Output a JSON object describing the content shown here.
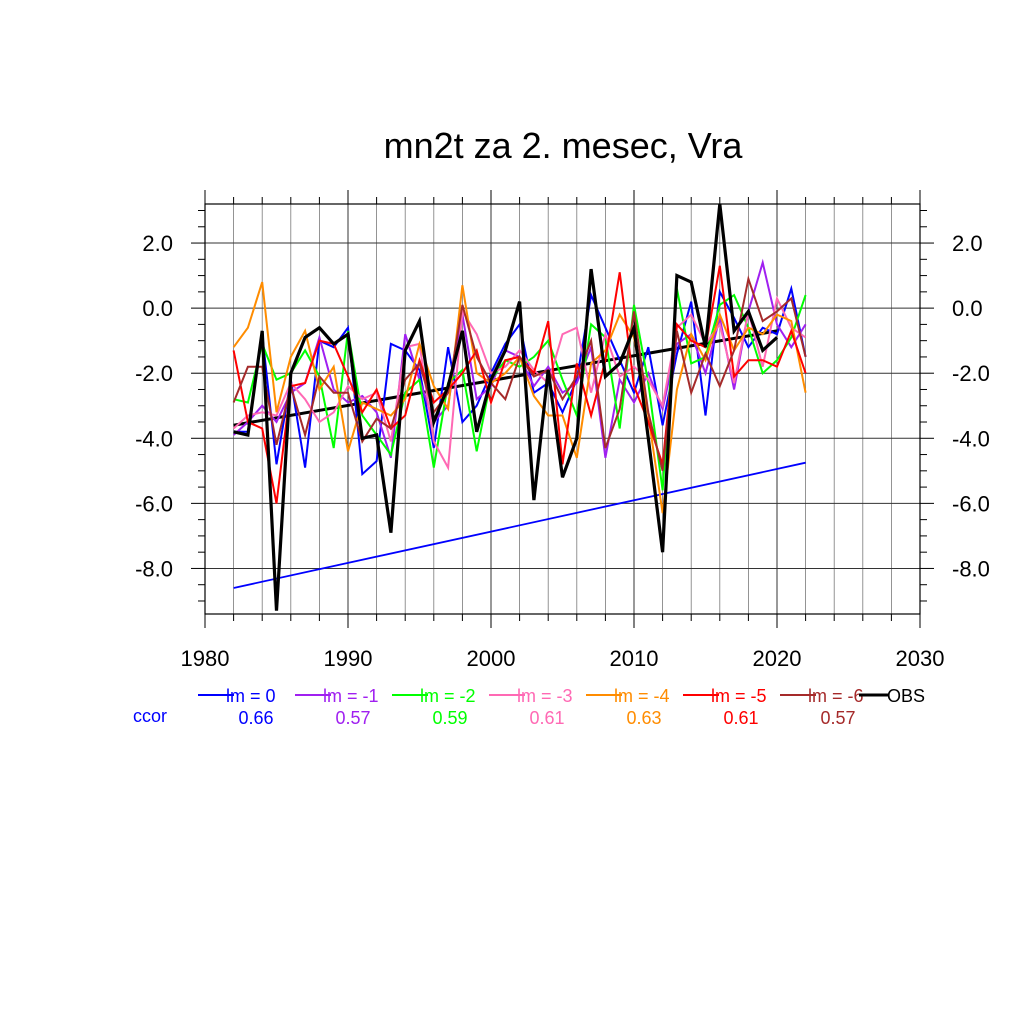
{
  "chart_data": {
    "type": "line",
    "title": "mn2t za 2. mesec, Vra",
    "xlabel": "",
    "ylabel": "",
    "xlim": [
      1980,
      2030
    ],
    "ylim": [
      -9.4,
      3.2
    ],
    "x_major_ticks": [
      1980,
      1990,
      2000,
      2010,
      2020,
      2030
    ],
    "y_major_ticks": [
      2,
      0,
      -2,
      -4,
      -6,
      -8
    ],
    "y_tick_labels": [
      "2.0",
      "0.0",
      "-2.0",
      "-4.0",
      "-6.0",
      "-8.0"
    ],
    "grid": true,
    "legend_position": "bottom",
    "ccor_label": "ccor",
    "x": [
      1982,
      1983,
      1984,
      1985,
      1986,
      1987,
      1988,
      1989,
      1990,
      1991,
      1992,
      1993,
      1994,
      1995,
      1996,
      1997,
      1998,
      1999,
      2000,
      2001,
      2002,
      2003,
      2004,
      2005,
      2006,
      2007,
      2008,
      2009,
      2010,
      2011,
      2012,
      2013,
      2014,
      2015,
      2016,
      2017,
      2018,
      2019,
      2020,
      2021,
      2022
    ],
    "series": [
      {
        "name": "lm = 0",
        "color": "#0000ff",
        "ccor": "0.66",
        "values": [
          -3.8,
          -3.8,
          -0.8,
          -4.8,
          -2.2,
          -4.9,
          -1.0,
          -1.2,
          -0.6,
          -5.1,
          -4.7,
          -1.1,
          -1.3,
          -1.9,
          -4.3,
          -1.2,
          -3.5,
          -3.0,
          -2.0,
          -1.1,
          -0.5,
          -2.6,
          -2.3,
          -3.2,
          -2.2,
          0.4,
          -0.6,
          -1.6,
          -2.6,
          -1.2,
          -3.6,
          -1.4,
          0.2,
          -3.3,
          0.5,
          -0.3,
          -1.2,
          -0.6,
          -0.8,
          0.6,
          -1.5
        ]
      },
      {
        "name": "lm = -1",
        "color": "#a020f0",
        "ccor": "0.57",
        "values": [
          -3.9,
          -3.5,
          -3.0,
          -3.5,
          -2.6,
          -2.3,
          -0.9,
          -2.5,
          -2.9,
          -2.7,
          -3.2,
          -4.6,
          -0.8,
          -2.2,
          -3.5,
          -3.0,
          -0.2,
          -2.8,
          -2.4,
          -1.3,
          -1.5,
          -2.4,
          -1.8,
          -2.6,
          -2.3,
          -1.2,
          -4.6,
          -2.2,
          -2.9,
          -2.0,
          -3.1,
          -1.1,
          -0.8,
          -2.0,
          -0.3,
          -2.5,
          -0.1,
          1.4,
          -0.5,
          -1.2,
          -0.5
        ]
      },
      {
        "name": "lm = -2",
        "color": "#00ff00",
        "ccor": "0.59",
        "values": [
          -2.8,
          -2.9,
          -1.1,
          -2.2,
          -2.0,
          -1.3,
          -2.1,
          -4.3,
          -0.7,
          -3.3,
          -3.9,
          -4.5,
          -2.6,
          -2.2,
          -4.9,
          -2.3,
          -1.9,
          -4.4,
          -2.2,
          -1.6,
          -1.8,
          -1.5,
          -1.0,
          -2.2,
          -3.3,
          -0.5,
          -0.9,
          -3.7,
          0.1,
          -2.3,
          -5.6,
          0.6,
          -1.7,
          -1.5,
          0.1,
          0.4,
          -0.6,
          -2.0,
          -1.6,
          -0.9,
          0.4
        ]
      },
      {
        "name": "lm = -3",
        "color": "#ff69b4",
        "ccor": "0.61",
        "values": [
          -3.7,
          -3.3,
          -3.2,
          -3.3,
          -2.3,
          -2.8,
          -3.5,
          -3.2,
          -2.4,
          -2.8,
          -2.6,
          -4.1,
          -1.2,
          -1.1,
          -4.1,
          -4.9,
          -0.1,
          -0.8,
          -2.0,
          -1.8,
          -1.3,
          -1.9,
          -2.3,
          -0.8,
          -0.6,
          -2.6,
          -0.8,
          -2.1,
          -1.8,
          -2.2,
          -3.0,
          -0.6,
          -0.2,
          -1.1,
          -0.5,
          -2.3,
          -0.1,
          -1.8,
          0.3,
          -0.6,
          -0.9
        ]
      },
      {
        "name": "lm = -4",
        "color": "#ff8c00",
        "ccor": "0.63",
        "values": [
          -1.2,
          -0.6,
          0.8,
          -3.2,
          -1.5,
          -0.7,
          -2.5,
          -1.8,
          -4.4,
          -2.9,
          -3.1,
          -3.3,
          -2.8,
          -1.1,
          -2.4,
          -3.1,
          0.7,
          -2.0,
          -2.3,
          -2.0,
          -1.5,
          -2.7,
          -3.3,
          -3.3,
          -4.6,
          -1.7,
          -1.3,
          -0.2,
          -0.9,
          -3.3,
          -6.3,
          -2.5,
          -0.8,
          -1.6,
          -0.2,
          -1.3,
          -0.6,
          -0.8,
          -0.2,
          -0.4,
          -2.6
        ]
      },
      {
        "name": "lm = -5",
        "color": "#ff0000",
        "ccor": "0.61",
        "values": [
          -1.3,
          -3.5,
          -3.7,
          -6.0,
          -2.4,
          -2.3,
          -1.0,
          -1.1,
          -2.1,
          -3.2,
          -2.5,
          -3.7,
          -3.3,
          -1.6,
          -2.9,
          -2.5,
          -2.0,
          -1.3,
          -2.9,
          -1.6,
          -1.5,
          -2.0,
          -0.4,
          -4.8,
          -1.7,
          -3.3,
          -1.6,
          1.1,
          -2.4,
          -3.5,
          -4.8,
          -0.5,
          -1.0,
          -1.2,
          1.3,
          -2.1,
          -1.6,
          -1.6,
          -1.8,
          -0.7,
          -2.0
        ]
      },
      {
        "name": "lm = -6",
        "color": "#a52a2a",
        "ccor": "0.57",
        "values": [
          -2.9,
          -1.8,
          -1.8,
          -4.2,
          -2.4,
          -3.9,
          -2.1,
          -2.6,
          -2.6,
          -4.1,
          -3.4,
          -3.7,
          -2.2,
          -1.7,
          -3.2,
          -2.6,
          0.1,
          -1.5,
          -2.3,
          -2.8,
          -1.5,
          -2.1,
          -1.9,
          -2.8,
          -2.1,
          -1.0,
          -4.3,
          -3.1,
          -0.1,
          -3.2,
          -5.0,
          -0.7,
          -2.6,
          -1.4,
          -2.4,
          -1.3,
          0.9,
          -0.4,
          -0.1,
          0.3,
          -1.5
        ]
      }
    ],
    "obs": {
      "name": "OBS",
      "color": "#000000",
      "x": [
        1982,
        1983,
        1984,
        1985,
        1986,
        1987,
        1988,
        1989,
        1990,
        1991,
        1992,
        1993,
        1994,
        1995,
        1996,
        1997,
        1998,
        1999,
        2000,
        2001,
        2002,
        2003,
        2004,
        2005,
        2006,
        2007,
        2008,
        2009,
        2010,
        2011,
        2012,
        2013,
        2014,
        2015,
        2016,
        2017,
        2018,
        2019,
        2020
      ],
      "values": [
        -3.8,
        -3.9,
        -0.7,
        -9.3,
        -2.0,
        -0.9,
        -0.6,
        -1.1,
        -0.8,
        -4.0,
        -3.9,
        -6.9,
        -1.3,
        -0.4,
        -3.5,
        -2.4,
        -0.7,
        -3.8,
        -2.2,
        -1.3,
        0.2,
        -5.9,
        -1.9,
        -5.2,
        -4.0,
        1.2,
        -2.1,
        -1.7,
        -0.6,
        -4.0,
        -7.5,
        1.0,
        0.8,
        -1.2,
        3.2,
        -0.7,
        -0.1,
        -1.3,
        -0.9
      ]
    },
    "trend_lines": [
      {
        "color": "#0000ff",
        "x": [
          1982,
          2022
        ],
        "y": [
          -8.6,
          -4.75
        ]
      },
      {
        "color": "#000000",
        "x": [
          1982,
          2020
        ],
        "y": [
          -3.6,
          -0.7
        ]
      }
    ]
  }
}
